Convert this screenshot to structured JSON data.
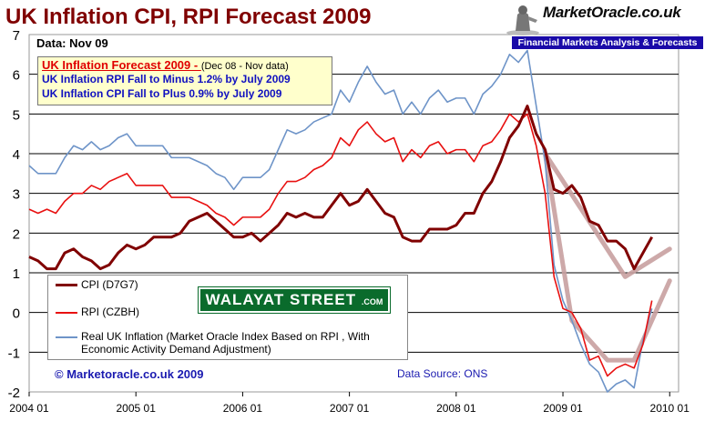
{
  "title": "UK Inflation CPI, RPI Forecast 2009",
  "data_label": "Data:  Nov 09",
  "logo": {
    "name": "MarketOracle.co.uk",
    "tagline": "Financial Markets Analysis & Forecasts"
  },
  "forecast_box": {
    "heading": "UK Inflation Forecast  2009 - ",
    "heading_note": "(Dec 08 - Nov data)",
    "line1": "UK Inflation RPI Fall to  Minus 1.2% by July 2009",
    "line2": "UK Inflation CPI Fall to Plus 0.9% by July 2009"
  },
  "watermark": {
    "text": "WALAYAT STREET",
    "suffix": ".COM"
  },
  "copyright": "© Marketoracle.co.uk  2009",
  "source": "Data Source: ONS",
  "colors": {
    "cpi": "#800000",
    "rpi": "#e81010",
    "real": "#6e94c8",
    "forecast": "#c8a0a0",
    "title": "#800000"
  },
  "chart_data": {
    "type": "line",
    "x_start": "2004 01",
    "x_tick_labels": [
      "2004 01",
      "2005 01",
      "2006 01",
      "2007 01",
      "2008 01",
      "2009 01",
      "2010 01"
    ],
    "y_tick_labels": [
      "-2",
      "-1",
      "0",
      "1",
      "2",
      "3",
      "4",
      "5",
      "6",
      "7"
    ],
    "ylim": [
      -2,
      7
    ],
    "x_range_months": [
      0,
      73
    ],
    "grid": "horizontal",
    "legend_position": "bottom-left",
    "series": [
      {
        "name": "CPI (D7G7)",
        "values": [
          1.4,
          1.3,
          1.1,
          1.1,
          1.5,
          1.6,
          1.4,
          1.3,
          1.1,
          1.2,
          1.5,
          1.7,
          1.6,
          1.7,
          1.9,
          1.9,
          1.9,
          2.0,
          2.3,
          2.4,
          2.5,
          2.3,
          2.1,
          1.9,
          1.9,
          2.0,
          1.8,
          2.0,
          2.2,
          2.5,
          2.4,
          2.5,
          2.4,
          2.4,
          2.7,
          3.0,
          2.7,
          2.8,
          3.1,
          2.8,
          2.5,
          2.4,
          1.9,
          1.8,
          1.8,
          2.1,
          2.1,
          2.1,
          2.2,
          2.5,
          2.5,
          3.0,
          3.3,
          3.8,
          4.4,
          4.7,
          5.2,
          4.5,
          4.1,
          3.1,
          3.0,
          3.2,
          2.9,
          2.3,
          2.2,
          1.8,
          1.8,
          1.6,
          1.1,
          1.5,
          1.9
        ]
      },
      {
        "name": "RPI (CZBH)",
        "values": [
          2.6,
          2.5,
          2.6,
          2.5,
          2.8,
          3.0,
          3.0,
          3.2,
          3.1,
          3.3,
          3.4,
          3.5,
          3.2,
          3.2,
          3.2,
          3.2,
          2.9,
          2.9,
          2.9,
          2.8,
          2.7,
          2.5,
          2.4,
          2.2,
          2.4,
          2.4,
          2.4,
          2.6,
          3.0,
          3.3,
          3.3,
          3.4,
          3.6,
          3.7,
          3.9,
          4.4,
          4.2,
          4.6,
          4.8,
          4.5,
          4.3,
          4.4,
          3.8,
          4.1,
          3.9,
          4.2,
          4.3,
          4.0,
          4.1,
          4.1,
          3.8,
          4.2,
          4.3,
          4.6,
          5.0,
          4.8,
          5.0,
          4.2,
          3.0,
          0.9,
          0.1,
          0.0,
          -0.4,
          -1.2,
          -1.1,
          -1.6,
          -1.4,
          -1.3,
          -1.4,
          -0.8,
          0.3
        ]
      },
      {
        "name": "Real UK Inflation (Market Oracle Index Based on RPI , With Economic Activity Demand Adjustment)",
        "values": [
          3.7,
          3.5,
          3.5,
          3.5,
          3.9,
          4.2,
          4.1,
          4.3,
          4.1,
          4.2,
          4.4,
          4.5,
          4.2,
          4.2,
          4.2,
          4.2,
          3.9,
          3.9,
          3.9,
          3.8,
          3.7,
          3.5,
          3.4,
          3.1,
          3.4,
          3.4,
          3.4,
          3.6,
          4.1,
          4.6,
          4.5,
          4.6,
          4.8,
          4.9,
          5.0,
          5.6,
          5.3,
          5.8,
          6.2,
          5.8,
          5.5,
          5.6,
          5.0,
          5.3,
          5.0,
          5.4,
          5.6,
          5.3,
          5.4,
          5.4,
          5.0,
          5.5,
          5.7,
          6.0,
          6.5,
          6.3,
          6.6,
          5.2,
          3.8,
          1.2,
          0.3,
          -0.2,
          -0.8,
          -1.3,
          -1.5,
          -2.0,
          -1.8,
          -1.7,
          -1.9,
          -0.7,
          0.1
        ]
      }
    ],
    "forecasts": [
      {
        "x": [
          58,
          67,
          72
        ],
        "values": [
          4.0,
          0.9,
          1.6
        ]
      },
      {
        "x": [
          58,
          61,
          65,
          68,
          72
        ],
        "values": [
          4.0,
          -0.2,
          -1.2,
          -1.2,
          0.8
        ]
      }
    ]
  }
}
